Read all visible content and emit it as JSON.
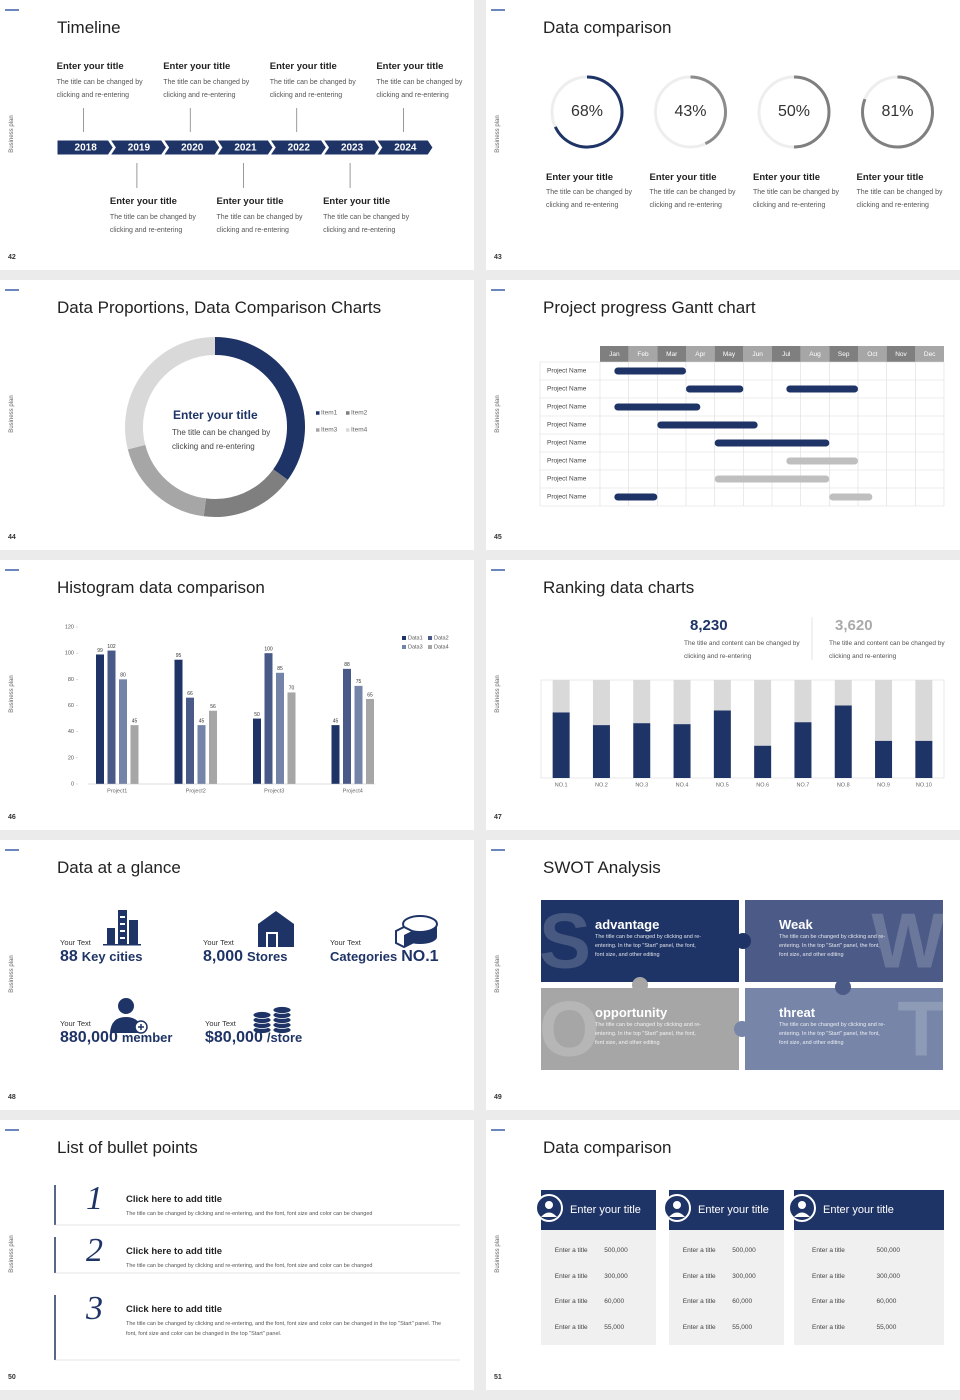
{
  "slides": [
    {
      "number": "42",
      "side_label": "Business plan",
      "title": "Timeline",
      "years": [
        "2018",
        "2019",
        "2020",
        "2021",
        "2022",
        "2023",
        "2024"
      ],
      "items": [
        {
          "title": "Enter your title",
          "text": "The title can be changed by clicking and re-entering"
        },
        {
          "title": "Enter your title",
          "text": "The title can be changed by clicking and re-entering"
        },
        {
          "title": "Enter your title",
          "text": "The title can be changed by clicking and re-entering"
        },
        {
          "title": "Enter your title",
          "text": "The title can be changed by clicking and re-entering"
        },
        {
          "title": "Enter your title",
          "text": "The title can be changed by clicking and re-entering"
        },
        {
          "title": "Enter your title",
          "text": "The title can be changed by clicking and re-entering"
        },
        {
          "title": "Enter your title",
          "text": "The title can be changed by clicking and re-entering"
        }
      ]
    },
    {
      "number": "43",
      "side_label": "Business plan",
      "title": "Data comparison",
      "values": [
        68,
        43,
        50,
        81
      ],
      "value_labels": [
        "68%",
        "43%",
        "50%",
        "81%"
      ],
      "ylim": [
        0,
        100
      ],
      "colors": [
        "#1f3466",
        "#8c8c8c",
        "#7f7f7f",
        "#808080"
      ],
      "items": [
        {
          "title": "Enter your title",
          "text": "The title can be changed by clicking and re-entering"
        },
        {
          "title": "Enter your title",
          "text": "The title can be changed by clicking and re-entering"
        },
        {
          "title": "Enter your title",
          "text": "The title can be changed by clicking and re-entering"
        },
        {
          "title": "Enter your title",
          "text": "The title can be changed by clicking and re-entering"
        }
      ]
    },
    {
      "number": "44",
      "side_label": "Business plan",
      "title": "Data Proportions, Data Comparison Charts",
      "chart": {
        "type": "pie",
        "categories": [
          "Item1",
          "Item2",
          "Item3",
          "Item4"
        ],
        "values": [
          35,
          17,
          19,
          29
        ],
        "colors": [
          "#1f3466",
          "#7f7f7f",
          "#a6a6a6",
          "#d9d9d9"
        ]
      },
      "center_title": "Enter your title",
      "center_text": "The title can be changed by clicking and re-entering"
    },
    {
      "number": "45",
      "side_label": "Business plan",
      "title": "Project progress Gantt chart",
      "gantt": {
        "months": [
          "Jan",
          "Feb",
          "Mar",
          "Apr",
          "May",
          "Jun",
          "Jul",
          "Aug",
          "Sep",
          "Oct",
          "Nov",
          "Dec"
        ],
        "xlim": [
          0,
          12
        ],
        "rows": [
          {
            "name": "Project Name",
            "bars": [
              {
                "start": 0.5,
                "end": 3,
                "color": "#1f3466"
              }
            ]
          },
          {
            "name": "Project Name",
            "bars": [
              {
                "start": 3,
                "end": 5,
                "color": "#1f3466"
              },
              {
                "start": 6.5,
                "end": 9,
                "color": "#1f3466"
              }
            ]
          },
          {
            "name": "Project Name",
            "bars": [
              {
                "start": 0.5,
                "end": 3.5,
                "color": "#1f3466"
              }
            ]
          },
          {
            "name": "Project Name",
            "bars": [
              {
                "start": 2,
                "end": 5.5,
                "color": "#1f3466"
              }
            ]
          },
          {
            "name": "Project Name",
            "bars": [
              {
                "start": 4,
                "end": 8,
                "color": "#1f3466"
              }
            ]
          },
          {
            "name": "Project Name",
            "bars": [
              {
                "start": 6.5,
                "end": 9,
                "color": "#bfbfbf"
              }
            ]
          },
          {
            "name": "Project Name",
            "bars": [
              {
                "start": 4,
                "end": 8,
                "color": "#bfbfbf"
              }
            ]
          },
          {
            "name": "Project Name",
            "bars": [
              {
                "start": 0.5,
                "end": 2,
                "color": "#1f3466"
              },
              {
                "start": 8,
                "end": 9.5,
                "color": "#bfbfbf"
              }
            ]
          }
        ]
      }
    },
    {
      "number": "46",
      "side_label": "Business plan",
      "title": "Histogram data comparison",
      "chart": {
        "type": "bar",
        "categories": [
          "Project1",
          "Project2",
          "Project3",
          "Project4"
        ],
        "series": [
          {
            "name": "Data1",
            "color": "#1f3466",
            "values": [
              99,
              95,
              50,
              45
            ]
          },
          {
            "name": "Data2",
            "color": "#4a5a88",
            "values": [
              102,
              66,
              100,
              88
            ]
          },
          {
            "name": "Data3",
            "color": "#7483a8",
            "values": [
              80,
              45,
              85,
              75
            ]
          },
          {
            "name": "Data4",
            "color": "#a6a6a6",
            "values": [
              45,
              56,
              70,
              65
            ]
          }
        ],
        "ylim": [
          0,
          120
        ],
        "yticks": [
          0,
          20,
          40,
          60,
          80,
          100,
          120
        ]
      }
    },
    {
      "number": "47",
      "side_label": "Business plan",
      "title": "Ranking data charts",
      "stats": [
        {
          "value": "8,230",
          "text": "The title and content can be changed by clicking and re-entering"
        },
        {
          "value": "3,620",
          "text": "The title and content can be changed by clicking and re-entering"
        }
      ],
      "chart": {
        "type": "bar",
        "stacked": true,
        "categories": [
          "NO.1",
          "NO.2",
          "NO.3",
          "NO.4",
          "NO.5",
          "NO.6",
          "NO.7",
          "NO.8",
          "NO.9",
          "NO.10"
        ],
        "series": [
          {
            "color": "#1f3466",
            "values": [
              67,
              54,
              56,
              55,
              69,
              33,
              57,
              74,
              38,
              38
            ]
          },
          {
            "color": "#d9d9d9",
            "values": [
              33,
              46,
              44,
              45,
              31,
              67,
              43,
              26,
              62,
              62
            ]
          }
        ],
        "ylim": [
          0,
          100
        ]
      }
    },
    {
      "number": "48",
      "side_label": "Business plan",
      "title": "Data at a glance",
      "items": [
        {
          "label": "Your Text",
          "value": "88",
          "unit": "Key cities"
        },
        {
          "label": "Your Text",
          "value": "8,000",
          "unit": "Stores"
        },
        {
          "label": "Your Text",
          "unit": "Categories",
          "value": "NO.1"
        },
        {
          "label": "Your Text",
          "value": "880,000",
          "unit": "member"
        },
        {
          "label": "Your Text",
          "value": "$80,000",
          "unit": "/store"
        }
      ]
    },
    {
      "number": "49",
      "side_label": "Business plan",
      "title": "SWOT Analysis",
      "items": [
        {
          "letter": "S",
          "title": "advantage",
          "text": "The title can be changed by clicking and re-entering. In the top \"Start\" panel, the font, font size, and other editing"
        },
        {
          "letter": "W",
          "title": "Weak",
          "text": "The title can be changed by clicking and re-entering. In the top \"Start\" panel, the font, font size, and other editing"
        },
        {
          "letter": "O",
          "title": "opportunity",
          "text": "The title can be changed by clicking and re-entering. In the top \"Start\" panel, the font, font size, and other editing"
        },
        {
          "letter": "T",
          "title": "threat",
          "text": "The title can be changed by clicking and re-entering. In the top \"Start\" panel, the font, font size, and other editing"
        }
      ]
    },
    {
      "number": "50",
      "side_label": "Business plan",
      "title": "List of bullet points",
      "items": [
        {
          "number": "1",
          "title": "Click here to add title",
          "text": "The title can be changed by clicking and re-entering, and the font, font size and color can be changed"
        },
        {
          "number": "2",
          "title": "Click here to add title",
          "text": "The title can be changed by clicking and re-entering, and the font, font size and color can be changed"
        },
        {
          "number": "3",
          "title": "Click here to add title",
          "text": "The title can be changed by clicking and re-entering, and the font, font size and color can be changed in the top \"Start\" panel. The font, font size and color can be changed in the top \"Start\" panel."
        }
      ]
    },
    {
      "number": "51",
      "side_label": "Business plan",
      "title": "Data comparison",
      "cards": [
        {
          "title": "Enter your title",
          "rows": [
            {
              "label": "Enter a title",
              "value": "500,000"
            },
            {
              "label": "Enter a title",
              "value": "300,000"
            },
            {
              "label": "Enter a title",
              "value": "60,000"
            },
            {
              "label": "Enter a title",
              "value": "55,000"
            }
          ]
        },
        {
          "title": "Enter your title",
          "rows": [
            {
              "label": "Enter a title",
              "value": "500,000"
            },
            {
              "label": "Enter a title",
              "value": "300,000"
            },
            {
              "label": "Enter a title",
              "value": "60,000"
            },
            {
              "label": "Enter a title",
              "value": "55,000"
            }
          ]
        },
        {
          "title": "Enter your title",
          "rows": [
            {
              "label": "Enter a title",
              "value": "500,000"
            },
            {
              "label": "Enter a title",
              "value": "300,000"
            },
            {
              "label": "Enter a title",
              "value": "60,000"
            },
            {
              "label": "Enter a title",
              "value": "55,000"
            }
          ]
        }
      ]
    }
  ]
}
